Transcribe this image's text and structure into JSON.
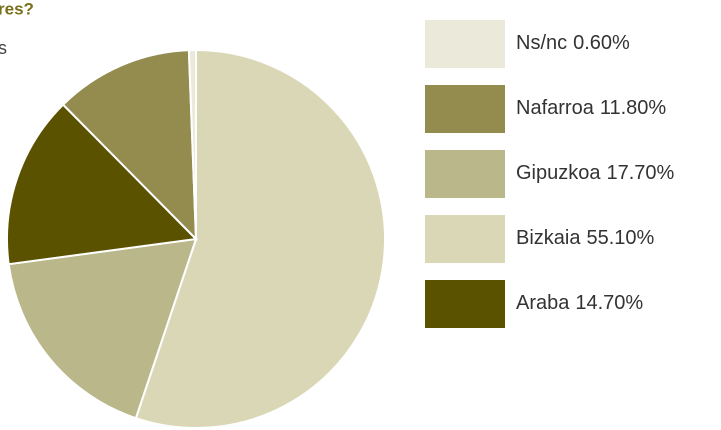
{
  "chart_data": {
    "type": "pie",
    "title": "res?",
    "subtitle": "s",
    "categories": [
      "Ns/nc",
      "Nafarroa",
      "Gipuzkoa",
      "Bizkaia",
      "Araba"
    ],
    "values": [
      0.6,
      11.8,
      17.7,
      55.1,
      14.7
    ],
    "value_labels": [
      "0.60%",
      "11.80%",
      "17.70%",
      "55.10%",
      "14.70%"
    ],
    "colors": [
      "#ebe9d9",
      "#948c4e",
      "#bab78a",
      "#dad7b6",
      "#5b5200"
    ],
    "slice_order": [
      3,
      2,
      4,
      1,
      0
    ],
    "direction": "clockwise",
    "start": "top",
    "legend": "right"
  }
}
